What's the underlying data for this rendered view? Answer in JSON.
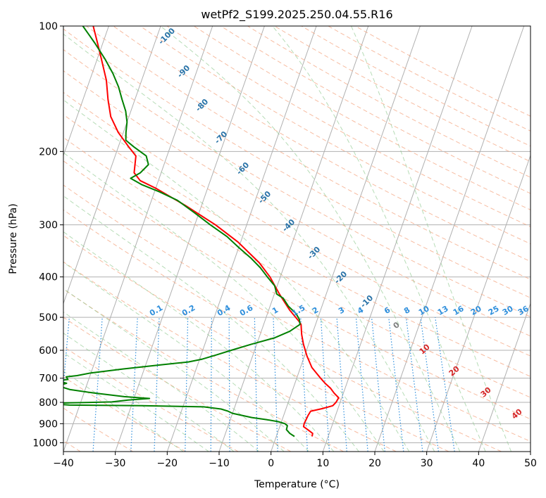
{
  "chart_data": {
    "type": "skew-t",
    "title": "wetPf2_S199.2025.250.04.55.R16",
    "xlabel": "Temperature (°C)",
    "ylabel": "Pressure (hPa)",
    "xlim": [
      -40,
      50
    ],
    "ylim": [
      1050,
      100
    ],
    "x_ticks": [
      "−40",
      "−30",
      "−20",
      "−10",
      "0",
      "10",
      "20",
      "30",
      "40",
      "50"
    ],
    "x_tick_values": [
      -40,
      -30,
      -20,
      -10,
      0,
      10,
      20,
      30,
      40,
      50
    ],
    "y_ticks": [
      "100",
      "200",
      "300",
      "400",
      "500",
      "600",
      "700",
      "800",
      "900",
      "1000"
    ],
    "y_tick_values": [
      100,
      200,
      300,
      400,
      500,
      600,
      700,
      800,
      900,
      1000
    ],
    "isotherm_labels": {
      "values": [
        -100,
        -90,
        -80,
        -70,
        -60,
        -50,
        -40,
        -30,
        -20,
        -10
      ],
      "labels": [
        "-100",
        "-90",
        "-80",
        "-70",
        "-60",
        "-50",
        "-40",
        "-30",
        "-20",
        "-10"
      ],
      "color": "#2a73a8"
    },
    "mixing_ratio_labels": {
      "values": [
        0.1,
        0.2,
        0.4,
        0.6,
        1,
        1.5,
        2,
        3,
        4,
        6,
        8,
        10,
        13,
        16,
        20,
        25,
        30,
        36
      ],
      "labels": [
        "0.1",
        "0.2",
        "0.4",
        "0.6",
        "1",
        "1.5",
        "2",
        "3",
        "4",
        "6",
        "8",
        "10",
        "13",
        "16",
        "20",
        "25",
        "30",
        "36"
      ],
      "color": "#2f8fdc"
    },
    "moist_adiabat_labels": {
      "values": [
        0,
        10,
        20,
        30,
        40
      ],
      "labels": [
        "0",
        "10",
        "20",
        "30",
        "40"
      ],
      "color": "#d62728",
      "zero_color": "#808080"
    },
    "series": [
      {
        "name": "temperature",
        "color": "#ff0000",
        "points": [
          [
            966,
            6.9
          ],
          [
            950,
            6.8
          ],
          [
            930,
            5.6
          ],
          [
            915,
            4.6
          ],
          [
            900,
            4.5
          ],
          [
            880,
            4.6
          ],
          [
            860,
            4.7
          ],
          [
            840,
            4.9
          ],
          [
            828,
            7.0
          ],
          [
            815,
            8.8
          ],
          [
            800,
            9.2
          ],
          [
            780,
            9.4
          ],
          [
            760,
            8.2
          ],
          [
            740,
            7.2
          ],
          [
            720,
            5.8
          ],
          [
            700,
            4.6
          ],
          [
            660,
            2.2
          ],
          [
            620,
            0.5
          ],
          [
            580,
            -1.0
          ],
          [
            550,
            -2.0
          ],
          [
            520,
            -2.8
          ],
          [
            510,
            -3.5
          ],
          [
            480,
            -6.0
          ],
          [
            440,
            -9.0
          ],
          [
            400,
            -12.0
          ],
          [
            370,
            -15.0
          ],
          [
            330,
            -20.5
          ],
          [
            300,
            -26.0
          ],
          [
            270,
            -33.0
          ],
          [
            245,
            -40.0
          ],
          [
            235,
            -43.5
          ],
          [
            225,
            -45.2
          ],
          [
            215,
            -45.6
          ],
          [
            205,
            -46.0
          ],
          [
            195,
            -48.0
          ],
          [
            180,
            -51.0
          ],
          [
            165,
            -53.5
          ],
          [
            150,
            -55.2
          ],
          [
            135,
            -56.8
          ],
          [
            120,
            -59.2
          ],
          [
            110,
            -61.0
          ],
          [
            100,
            -63.0
          ]
        ]
      },
      {
        "name": "dewpoint",
        "color": "#008000",
        "points": [
          [
            966,
            3.5
          ],
          [
            950,
            2.4
          ],
          [
            930,
            1.5
          ],
          [
            910,
            1.4
          ],
          [
            900,
            0.8
          ],
          [
            890,
            -0.6
          ],
          [
            880,
            -3.0
          ],
          [
            870,
            -6.0
          ],
          [
            850,
            -10.0
          ],
          [
            840,
            -11.0
          ],
          [
            830,
            -12.5
          ],
          [
            820,
            -16.0
          ],
          [
            815,
            -28.0
          ],
          [
            812,
            -42.0
          ],
          [
            807,
            -45.0
          ],
          [
            803,
            -44.0
          ],
          [
            798,
            -34.0
          ],
          [
            790,
            -31.0
          ],
          [
            783,
            -27.0
          ],
          [
            775,
            -32.0
          ],
          [
            760,
            -38.0
          ],
          [
            745,
            -43.0
          ],
          [
            730,
            -45.5
          ],
          [
            720,
            -44.0
          ],
          [
            710,
            -46.0
          ],
          [
            705,
            -44.0
          ],
          [
            695,
            -44.5
          ],
          [
            690,
            -42.5
          ],
          [
            680,
            -40.0
          ],
          [
            665,
            -34.0
          ],
          [
            650,
            -27.0
          ],
          [
            640,
            -22.0
          ],
          [
            630,
            -19.5
          ],
          [
            615,
            -17.0
          ],
          [
            600,
            -14.5
          ],
          [
            580,
            -11.0
          ],
          [
            560,
            -7.0
          ],
          [
            540,
            -4.5
          ],
          [
            520,
            -3.0
          ],
          [
            505,
            -3.5
          ],
          [
            490,
            -4.5
          ],
          [
            470,
            -6.5
          ],
          [
            450,
            -8.0
          ],
          [
            440,
            -9.5
          ],
          [
            420,
            -10.5
          ],
          [
            400,
            -12.5
          ],
          [
            380,
            -14.5
          ],
          [
            360,
            -17.0
          ],
          [
            340,
            -20.0
          ],
          [
            320,
            -23.0
          ],
          [
            300,
            -27.0
          ],
          [
            280,
            -31.0
          ],
          [
            262,
            -35.0
          ],
          [
            250,
            -39.0
          ],
          [
            240,
            -43.0
          ],
          [
            232,
            -45.5
          ],
          [
            225,
            -44.0
          ],
          [
            215,
            -43.0
          ],
          [
            205,
            -44.0
          ],
          [
            195,
            -47.0
          ],
          [
            188,
            -49.0
          ],
          [
            180,
            -49.5
          ],
          [
            170,
            -50.0
          ],
          [
            160,
            -51.0
          ],
          [
            150,
            -52.5
          ],
          [
            140,
            -54.0
          ],
          [
            130,
            -56.0
          ],
          [
            120,
            -58.5
          ],
          [
            110,
            -61.5
          ],
          [
            100,
            -65.0
          ]
        ]
      }
    ]
  }
}
